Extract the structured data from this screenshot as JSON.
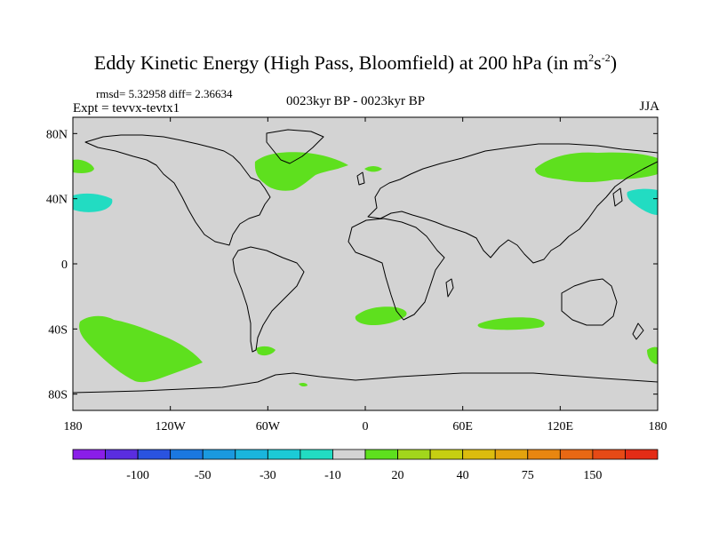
{
  "title": {
    "text": "Eddy Kinetic Energy (High Pass, Bloomfield) at 200 hPa (in m",
    "sup1": "2",
    "mid": "s",
    "sup2": "-2",
    "close": ")"
  },
  "stats": "rmsd= 5.32958 diff= 2.36634",
  "expt": "Expt = tevvx-tevtx1",
  "period": "0023kyr BP - 0023kyr BP",
  "season": "JJA",
  "map": {
    "projection": "cylindrical-equidistant",
    "lon_range": [
      -180,
      180
    ],
    "lat_range": [
      -90,
      90
    ],
    "background_color": "#d3d3d3",
    "lat_ticks": [
      {
        "value": 80,
        "label": "80N"
      },
      {
        "value": 40,
        "label": "40N"
      },
      {
        "value": 0,
        "label": "0"
      },
      {
        "value": -40,
        "label": "40S"
      },
      {
        "value": -80,
        "label": "80S"
      }
    ],
    "lon_ticks": [
      {
        "value": -180,
        "label": "180"
      },
      {
        "value": -120,
        "label": "120W"
      },
      {
        "value": -60,
        "label": "60W"
      },
      {
        "value": 0,
        "label": "0"
      },
      {
        "value": 60,
        "label": "60E"
      },
      {
        "value": 120,
        "label": "120E"
      },
      {
        "value": 180,
        "label": "180"
      }
    ]
  },
  "colorbar": {
    "colors": [
      "#8a1ee8",
      "#5a2de0",
      "#2a53e0",
      "#1b78e0",
      "#1a99df",
      "#1ab5dd",
      "#1ccad6",
      "#22dcc2",
      "#d3d3d3",
      "#5ee01e",
      "#a2d61c",
      "#c6cf12",
      "#dcbc0e",
      "#e4a30e",
      "#e88610",
      "#e86814",
      "#e64a16",
      "#e42c16"
    ],
    "labels": [
      {
        "after_box": 2,
        "text": "-100"
      },
      {
        "after_box": 4,
        "text": "-50"
      },
      {
        "after_box": 6,
        "text": "-30"
      },
      {
        "after_box": 8,
        "text": "-10"
      },
      {
        "after_box": 10,
        "text": "20"
      },
      {
        "after_box": 12,
        "text": "40"
      },
      {
        "after_box": 14,
        "text": "75"
      },
      {
        "after_box": 16,
        "text": "150"
      }
    ]
  }
}
